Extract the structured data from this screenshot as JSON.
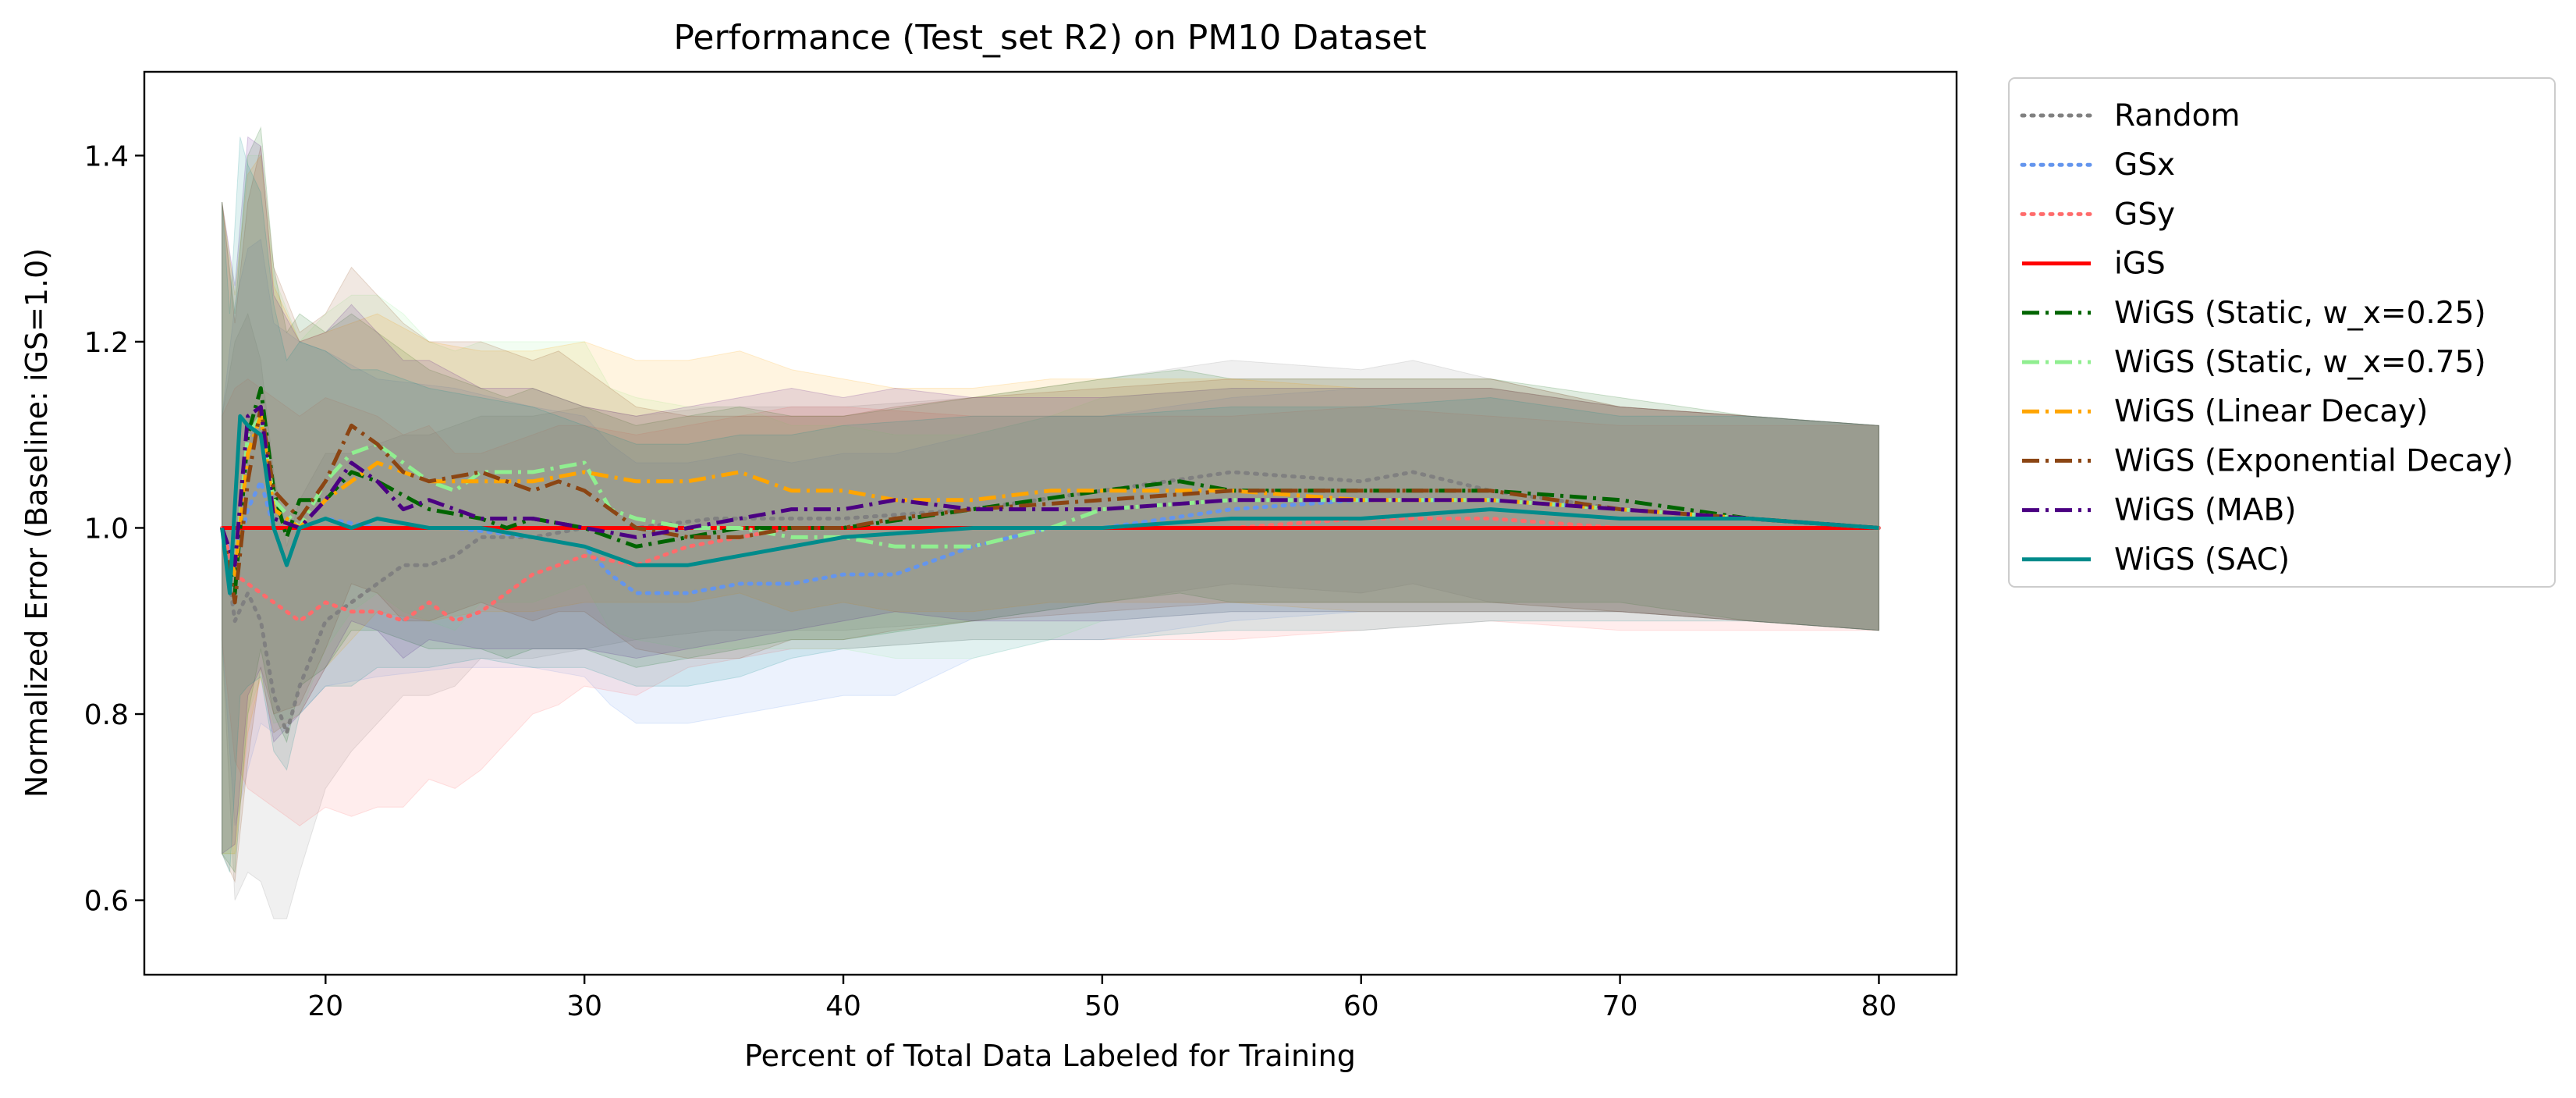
{
  "chart_data": {
    "type": "line",
    "title": "Performance (Test_set R2) on PM10 Dataset",
    "xlabel": "Percent of Total Data Labeled for Training",
    "ylabel": "Normalized Error (Baseline: iGS=1.0)",
    "xlim": [
      13,
      83
    ],
    "ylim": [
      0.52,
      1.49
    ],
    "xticks": [
      20,
      30,
      40,
      50,
      60,
      70,
      80
    ],
    "yticks": [
      0.6,
      0.8,
      1.0,
      1.2,
      1.4
    ],
    "xtick_labels": [
      "20",
      "30",
      "40",
      "50",
      "60",
      "70",
      "80"
    ],
    "ytick_labels": [
      "0.6",
      "0.8",
      "1.0",
      "1.2",
      "1.4"
    ],
    "grid": false,
    "legend_position": "outside-right",
    "shaded_band": "variability band per series",
    "series": [
      {
        "name": "Random",
        "color": "#808080",
        "linestyle": "dotted",
        "x": [
          16,
          16.5,
          17,
          17.5,
          18,
          18.5,
          19,
          20,
          21,
          22,
          23,
          24,
          25,
          26,
          28,
          30,
          32,
          35,
          40,
          45,
          50,
          55,
          60,
          62,
          65,
          70,
          75,
          80
        ],
        "y": [
          1.0,
          0.9,
          0.93,
          0.9,
          0.82,
          0.78,
          0.83,
          0.9,
          0.92,
          0.94,
          0.96,
          0.96,
          0.97,
          0.99,
          0.99,
          1.0,
          1.0,
          1.01,
          1.01,
          1.02,
          1.04,
          1.06,
          1.05,
          1.06,
          1.04,
          1.02,
          1.01,
          1.0
        ],
        "band": [
          0.12,
          0.3,
          0.3,
          0.28,
          0.24,
          0.2,
          0.2,
          0.18,
          0.16,
          0.15,
          0.14,
          0.14,
          0.14,
          0.13,
          0.13,
          0.13,
          0.12,
          0.12,
          0.12,
          0.12,
          0.12,
          0.12,
          0.12,
          0.12,
          0.12,
          0.11,
          0.11,
          0.11
        ]
      },
      {
        "name": "GSx",
        "color": "#6495ed",
        "linestyle": "dotted",
        "x": [
          16,
          16.5,
          17,
          17.5,
          18,
          19,
          20,
          22,
          25,
          28,
          30,
          31,
          32,
          34,
          36,
          38,
          40,
          42,
          45,
          48,
          50,
          55,
          60,
          65,
          70,
          75,
          80
        ],
        "y": [
          1.0,
          0.96,
          1.02,
          1.05,
          1.0,
          1.0,
          1.01,
          1.0,
          1.0,
          0.99,
          0.98,
          0.95,
          0.93,
          0.93,
          0.94,
          0.94,
          0.95,
          0.95,
          0.98,
          1.0,
          1.0,
          1.02,
          1.03,
          1.03,
          1.02,
          1.01,
          1.0
        ],
        "band": [
          0.12,
          0.28,
          0.28,
          0.26,
          0.22,
          0.2,
          0.18,
          0.16,
          0.15,
          0.14,
          0.14,
          0.14,
          0.14,
          0.14,
          0.14,
          0.13,
          0.13,
          0.13,
          0.12,
          0.12,
          0.12,
          0.12,
          0.12,
          0.12,
          0.11,
          0.11,
          0.11
        ]
      },
      {
        "name": "GSy",
        "color": "#ff6b6b",
        "linestyle": "dotted",
        "x": [
          16,
          16.5,
          17,
          18,
          19,
          20,
          21,
          22,
          23,
          24,
          25,
          26,
          27,
          28,
          29,
          30,
          32,
          34,
          36,
          38,
          40,
          45,
          50,
          55,
          60,
          65,
          70,
          75,
          80
        ],
        "y": [
          1.0,
          0.95,
          0.94,
          0.92,
          0.9,
          0.92,
          0.91,
          0.91,
          0.9,
          0.92,
          0.9,
          0.91,
          0.93,
          0.95,
          0.96,
          0.97,
          0.96,
          0.98,
          0.99,
          1.0,
          1.0,
          1.0,
          1.0,
          1.0,
          1.01,
          1.01,
          1.0,
          1.0,
          1.0
        ],
        "band": [
          0.12,
          0.2,
          0.22,
          0.22,
          0.22,
          0.22,
          0.22,
          0.21,
          0.2,
          0.19,
          0.18,
          0.17,
          0.16,
          0.15,
          0.15,
          0.14,
          0.14,
          0.13,
          0.13,
          0.13,
          0.13,
          0.12,
          0.12,
          0.12,
          0.12,
          0.11,
          0.11,
          0.11,
          0.11
        ]
      },
      {
        "name": "iGS",
        "color": "#ff0000",
        "linestyle": "solid",
        "x": [
          16,
          80
        ],
        "y": [
          1.0,
          1.0
        ],
        "band": [
          0.0,
          0.0
        ]
      },
      {
        "name": "WiGS (Static, w_x=0.25)",
        "color": "#006400",
        "linestyle": "dashdot",
        "x": [
          16,
          16.5,
          17,
          17.5,
          18,
          18.5,
          19,
          20,
          21,
          22,
          24,
          26,
          27,
          28,
          30,
          31,
          32,
          34,
          36,
          38,
          40,
          45,
          50,
          53,
          55,
          60,
          65,
          70,
          75,
          80
        ],
        "y": [
          1.0,
          0.93,
          1.1,
          1.15,
          1.04,
          0.99,
          1.03,
          1.03,
          1.06,
          1.05,
          1.02,
          1.01,
          1.0,
          1.01,
          1.0,
          0.99,
          0.98,
          0.99,
          1.0,
          1.0,
          1.0,
          1.02,
          1.04,
          1.05,
          1.04,
          1.04,
          1.04,
          1.03,
          1.01,
          1.0
        ],
        "band": [
          0.35,
          0.3,
          0.3,
          0.28,
          0.24,
          0.22,
          0.2,
          0.18,
          0.17,
          0.16,
          0.15,
          0.14,
          0.14,
          0.14,
          0.13,
          0.13,
          0.13,
          0.13,
          0.13,
          0.12,
          0.12,
          0.12,
          0.12,
          0.12,
          0.12,
          0.12,
          0.12,
          0.11,
          0.11,
          0.11
        ]
      },
      {
        "name": "WiGS (Static, w_x=0.75)",
        "color": "#90ee90",
        "linestyle": "dashdot",
        "x": [
          16,
          16.5,
          17,
          17.5,
          18,
          19,
          20,
          21,
          22,
          23,
          24,
          25,
          26,
          28,
          30,
          31,
          32,
          34,
          36,
          38,
          40,
          42,
          45,
          48,
          50,
          55,
          60,
          65,
          70,
          75,
          80
        ],
        "y": [
          1.0,
          0.95,
          1.1,
          1.12,
          1.03,
          1.0,
          1.05,
          1.08,
          1.09,
          1.07,
          1.05,
          1.04,
          1.06,
          1.06,
          1.07,
          1.02,
          1.01,
          1.0,
          1.0,
          0.99,
          0.99,
          0.98,
          0.98,
          1.0,
          1.02,
          1.03,
          1.03,
          1.03,
          1.02,
          1.01,
          1.0
        ],
        "band": [
          0.35,
          0.3,
          0.3,
          0.28,
          0.24,
          0.2,
          0.18,
          0.17,
          0.16,
          0.16,
          0.15,
          0.15,
          0.14,
          0.14,
          0.13,
          0.13,
          0.13,
          0.13,
          0.13,
          0.12,
          0.12,
          0.12,
          0.12,
          0.12,
          0.12,
          0.12,
          0.12,
          0.12,
          0.11,
          0.11,
          0.11
        ]
      },
      {
        "name": "WiGS (Linear Decay)",
        "color": "#ffa500",
        "linestyle": "dashdot",
        "x": [
          16,
          16.5,
          17,
          17.5,
          18,
          19,
          20,
          21,
          22,
          24,
          26,
          28,
          30,
          32,
          34,
          36,
          38,
          40,
          42,
          45,
          48,
          50,
          55,
          60,
          65,
          70,
          75,
          80
        ],
        "y": [
          1.0,
          0.95,
          1.08,
          1.12,
          1.02,
          1.0,
          1.03,
          1.05,
          1.07,
          1.05,
          1.05,
          1.05,
          1.06,
          1.05,
          1.05,
          1.06,
          1.04,
          1.04,
          1.03,
          1.03,
          1.04,
          1.04,
          1.04,
          1.03,
          1.03,
          1.02,
          1.01,
          1.0
        ],
        "band": [
          0.35,
          0.3,
          0.3,
          0.28,
          0.24,
          0.2,
          0.18,
          0.17,
          0.16,
          0.15,
          0.14,
          0.14,
          0.14,
          0.13,
          0.13,
          0.13,
          0.13,
          0.12,
          0.12,
          0.12,
          0.12,
          0.12,
          0.12,
          0.12,
          0.12,
          0.11,
          0.11,
          0.11
        ]
      },
      {
        "name": "WiGS (Exponential Decay)",
        "color": "#8b4513",
        "linestyle": "dashdot",
        "x": [
          16,
          16.5,
          17,
          17.5,
          18,
          19,
          20,
          21,
          22,
          23,
          24,
          26,
          28,
          29,
          30,
          32,
          34,
          36,
          38,
          40,
          42,
          45,
          50,
          55,
          60,
          65,
          70,
          75,
          80
        ],
        "y": [
          1.0,
          0.92,
          1.05,
          1.13,
          1.04,
          1.01,
          1.05,
          1.11,
          1.09,
          1.06,
          1.05,
          1.06,
          1.04,
          1.05,
          1.04,
          1.0,
          0.99,
          0.99,
          1.0,
          1.0,
          1.01,
          1.02,
          1.03,
          1.04,
          1.04,
          1.04,
          1.02,
          1.01,
          1.0
        ],
        "band": [
          0.35,
          0.3,
          0.3,
          0.28,
          0.24,
          0.2,
          0.18,
          0.17,
          0.16,
          0.16,
          0.15,
          0.14,
          0.14,
          0.14,
          0.13,
          0.13,
          0.13,
          0.13,
          0.12,
          0.12,
          0.12,
          0.12,
          0.12,
          0.12,
          0.12,
          0.12,
          0.11,
          0.11,
          0.11
        ]
      },
      {
        "name": "WiGS (MAB)",
        "color": "#4b0082",
        "linestyle": "dashdot",
        "x": [
          16,
          16.5,
          17,
          17.5,
          18,
          19,
          20,
          21,
          22,
          23,
          24,
          26,
          28,
          30,
          32,
          34,
          36,
          38,
          40,
          42,
          45,
          48,
          50,
          55,
          60,
          65,
          70,
          75,
          80
        ],
        "y": [
          1.0,
          0.96,
          1.12,
          1.13,
          1.01,
          1.0,
          1.03,
          1.07,
          1.05,
          1.02,
          1.03,
          1.01,
          1.01,
          1.0,
          0.99,
          1.0,
          1.01,
          1.02,
          1.02,
          1.03,
          1.02,
          1.02,
          1.02,
          1.03,
          1.03,
          1.03,
          1.02,
          1.01,
          1.0
        ],
        "band": [
          0.35,
          0.3,
          0.3,
          0.28,
          0.24,
          0.2,
          0.18,
          0.17,
          0.16,
          0.16,
          0.15,
          0.14,
          0.14,
          0.13,
          0.13,
          0.13,
          0.13,
          0.13,
          0.12,
          0.12,
          0.12,
          0.12,
          0.12,
          0.12,
          0.12,
          0.12,
          0.11,
          0.11,
          0.11
        ]
      },
      {
        "name": "WiGS (SAC)",
        "color": "#008b8b",
        "linestyle": "solid",
        "x": [
          16,
          16.3,
          16.7,
          17,
          17.5,
          18,
          18.5,
          19,
          20,
          21,
          22,
          24,
          26,
          28,
          30,
          31,
          32,
          34,
          36,
          38,
          40,
          45,
          50,
          55,
          60,
          65,
          70,
          75,
          80
        ],
        "y": [
          1.0,
          0.93,
          1.12,
          1.11,
          1.1,
          1.0,
          0.96,
          1.0,
          1.01,
          1.0,
          1.01,
          1.0,
          1.0,
          0.99,
          0.98,
          0.97,
          0.96,
          0.96,
          0.97,
          0.98,
          0.99,
          1.0,
          1.0,
          1.01,
          1.01,
          1.02,
          1.01,
          1.01,
          1.0
        ],
        "band": [
          0.35,
          0.3,
          0.3,
          0.28,
          0.26,
          0.24,
          0.22,
          0.2,
          0.18,
          0.17,
          0.16,
          0.15,
          0.14,
          0.14,
          0.13,
          0.13,
          0.13,
          0.13,
          0.13,
          0.12,
          0.12,
          0.12,
          0.12,
          0.12,
          0.12,
          0.12,
          0.11,
          0.11,
          0.11
        ]
      }
    ]
  }
}
